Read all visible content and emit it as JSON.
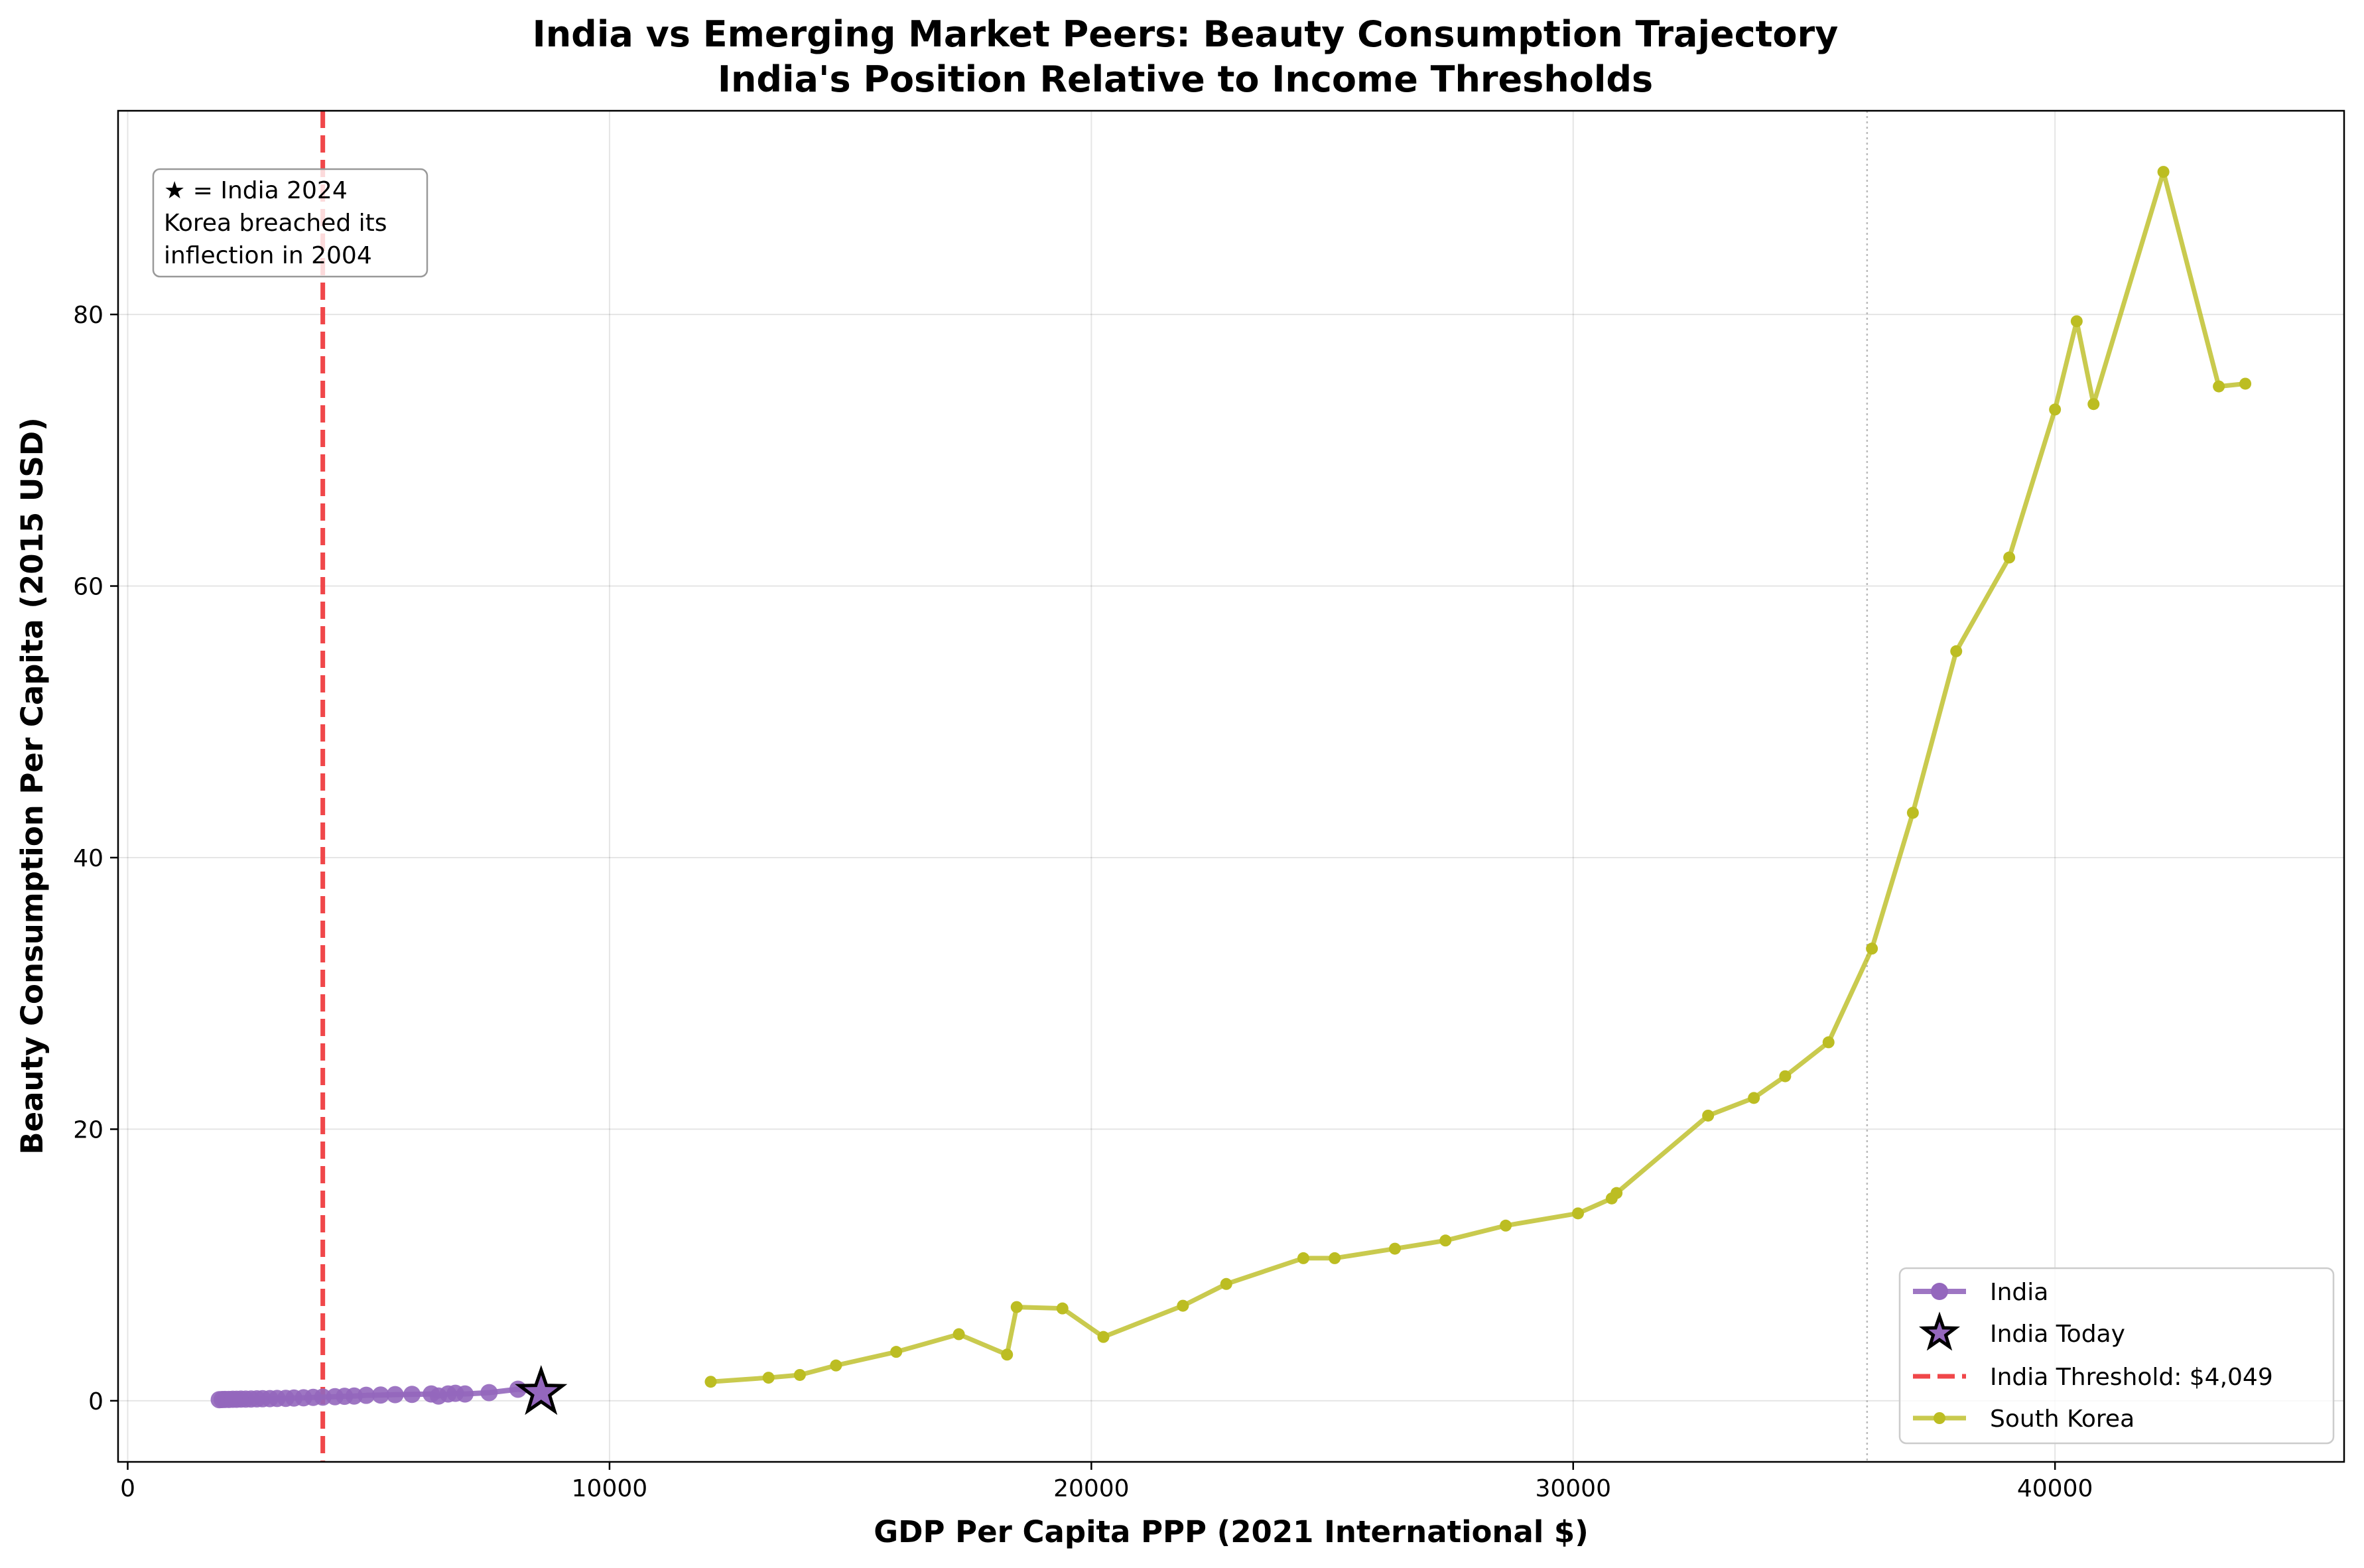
{
  "chart_data": {
    "type": "line",
    "title": "India vs Emerging Market Peers: Beauty Consumption Trajectory",
    "subtitle": "India's Position Relative to Income Thresholds",
    "xlabel": "GDP Per Capita PPP (2021 International $)",
    "ylabel": "Beauty Consumption Per Capita (2015 USD)",
    "xlim": [
      -200,
      46000
    ],
    "ylim": [
      -4.5,
      95
    ],
    "xticks": [
      0,
      10000,
      20000,
      30000,
      40000
    ],
    "xtick_labels": [
      "0",
      "10000",
      "20000",
      "30000",
      "40000"
    ],
    "yticks": [
      0,
      20,
      40,
      60,
      80
    ],
    "ytick_labels": [
      "0",
      "20",
      "40",
      "60",
      "80"
    ],
    "grid": true,
    "legend_position": "lower-right",
    "annotation": {
      "lines": [
        "★ = India 2024",
        "Korea breached its",
        "inflection in 2004"
      ],
      "position": "top-left"
    },
    "threshold": {
      "name": "India Threshold: $4,049",
      "x": 4049,
      "color": "#f0474a",
      "style": "dashed"
    },
    "reference_line": {
      "x": 36100,
      "color": "#bbbbbb",
      "style": "dotted"
    },
    "series": [
      {
        "name": "India",
        "color": "#9467bd",
        "points": [
          [
            1900,
            0.08
          ],
          [
            1960,
            0.09
          ],
          [
            2020,
            0.1
          ],
          [
            2100,
            0.1
          ],
          [
            2180,
            0.11
          ],
          [
            2260,
            0.11
          ],
          [
            2350,
            0.12
          ],
          [
            2450,
            0.12
          ],
          [
            2560,
            0.13
          ],
          [
            2680,
            0.14
          ],
          [
            2800,
            0.15
          ],
          [
            2950,
            0.16
          ],
          [
            3100,
            0.17
          ],
          [
            3280,
            0.18
          ],
          [
            3450,
            0.2
          ],
          [
            3650,
            0.22
          ],
          [
            3850,
            0.25
          ],
          [
            4050,
            0.27
          ],
          [
            4300,
            0.3
          ],
          [
            4500,
            0.33
          ],
          [
            4700,
            0.35
          ],
          [
            4950,
            0.4
          ],
          [
            5250,
            0.42
          ],
          [
            5550,
            0.45
          ],
          [
            5900,
            0.47
          ],
          [
            6300,
            0.5
          ],
          [
            6450,
            0.35
          ],
          [
            6650,
            0.5
          ],
          [
            6800,
            0.55
          ],
          [
            7000,
            0.5
          ],
          [
            7500,
            0.6
          ],
          [
            8100,
            0.85
          ],
          [
            8580,
            0.6
          ]
        ]
      },
      {
        "name": "India Today",
        "marker": "star",
        "points": [
          [
            8580,
            0.6
          ]
        ]
      },
      {
        "name": "South Korea",
        "color": "#bcbd22",
        "points": [
          [
            12100,
            1.4
          ],
          [
            13300,
            1.7
          ],
          [
            13950,
            1.9
          ],
          [
            14700,
            2.6
          ],
          [
            15950,
            3.6
          ],
          [
            17250,
            4.9
          ],
          [
            18250,
            3.4
          ],
          [
            18450,
            6.9
          ],
          [
            19400,
            6.8
          ],
          [
            20250,
            4.7
          ],
          [
            21900,
            7.0
          ],
          [
            22800,
            8.6
          ],
          [
            24400,
            10.5
          ],
          [
            25050,
            10.5
          ],
          [
            26300,
            11.2
          ],
          [
            27350,
            11.8
          ],
          [
            28600,
            12.9
          ],
          [
            30100,
            13.8
          ],
          [
            30800,
            14.9
          ],
          [
            30900,
            15.3
          ],
          [
            32800,
            21.0
          ],
          [
            33750,
            22.3
          ],
          [
            34400,
            23.9
          ],
          [
            35300,
            26.4
          ],
          [
            36200,
            33.3
          ],
          [
            37050,
            43.3
          ],
          [
            37950,
            55.2
          ],
          [
            39050,
            62.1
          ],
          [
            40000,
            73.0
          ],
          [
            40450,
            79.5
          ],
          [
            40800,
            73.4
          ],
          [
            42250,
            90.5
          ],
          [
            43400,
            74.7
          ],
          [
            43950,
            74.9
          ]
        ]
      }
    ]
  }
}
